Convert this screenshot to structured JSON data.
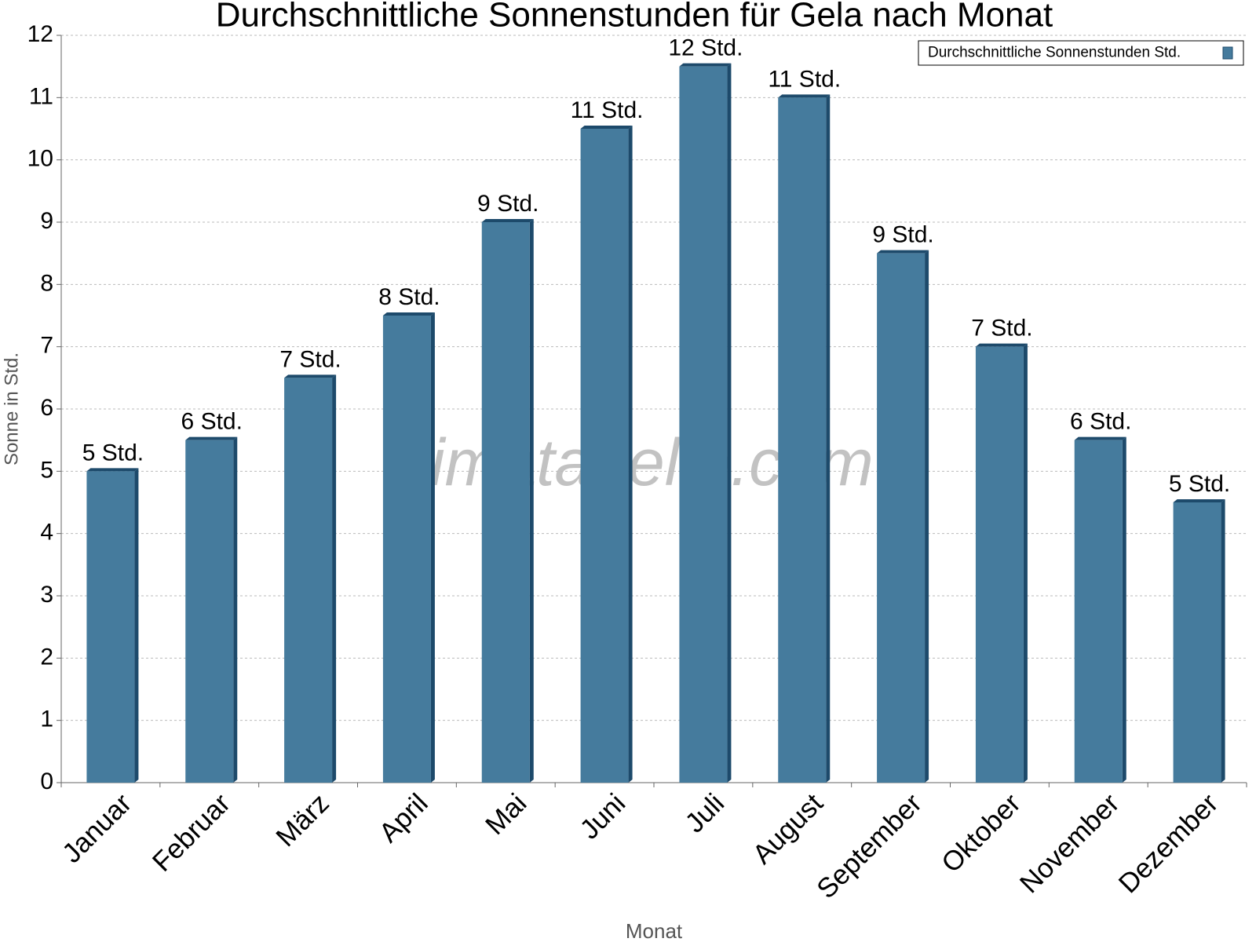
{
  "chart_data": {
    "type": "bar",
    "title": "Durchschnittliche Sonnenstunden für Gela nach Monat",
    "x_label": "Monat",
    "y_label": "Sonne in Std.",
    "watermark": "klimatabelle.com",
    "categories": [
      "Januar",
      "Februar",
      "März",
      "April",
      "Mai",
      "Juni",
      "Juli",
      "August",
      "September",
      "Oktober",
      "November",
      "Dezember"
    ],
    "series": [
      {
        "name": "Durchschnittliche Sonnenstunden Std.",
        "color": "#457b9d",
        "values": [
          5,
          5.5,
          6.5,
          7.5,
          9,
          10.5,
          11.5,
          11,
          8.5,
          7,
          5.5,
          4.5
        ],
        "value_labels": [
          "5 Std.",
          "6 Std.",
          "7 Std.",
          "8 Std.",
          "9 Std.",
          "11 Std.",
          "12 Std.",
          "11 Std.",
          "9 Std.",
          "7 Std.",
          "6 Std.",
          "5 Std."
        ]
      }
    ],
    "ylim": [
      0,
      12
    ],
    "yticks": [
      0,
      1,
      2,
      3,
      4,
      5,
      6,
      7,
      8,
      9,
      10,
      11,
      12
    ],
    "grid": true,
    "legend": "top-right"
  }
}
